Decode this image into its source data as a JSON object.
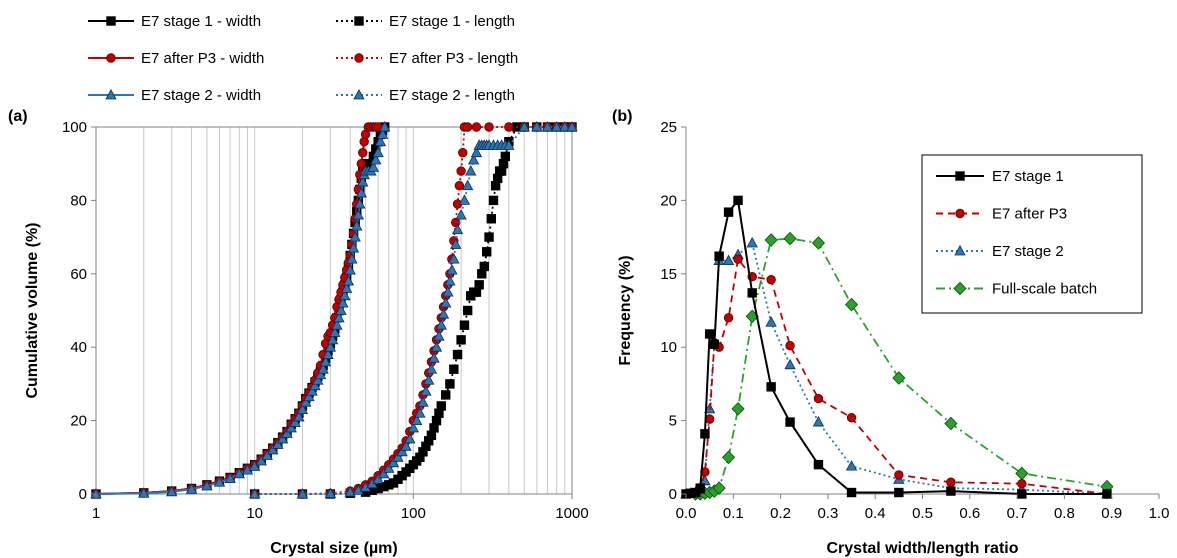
{
  "chart_data": [
    {
      "panel_label": "(a)",
      "type": "line",
      "xlabel": "Crystal size (µm)",
      "ylabel": "Cumulative volume (%)",
      "xscale": "log",
      "xlim": [
        1,
        1000
      ],
      "ylim": [
        0,
        100
      ],
      "xticks": [
        "1",
        "10",
        "100",
        "1000"
      ],
      "yticks": [
        "0",
        "20",
        "40",
        "60",
        "80",
        "100"
      ],
      "grid": "vertical minor gridlines",
      "legend_position": "above plot, two columns",
      "series": [
        {
          "name": "E7 stage 1 - width",
          "color": "#000000",
          "style": "solid",
          "marker": "square",
          "x": [
            1,
            2,
            3,
            4,
            5,
            6,
            7,
            8,
            9,
            10,
            11,
            12,
            13,
            14,
            15,
            16,
            17,
            18,
            19,
            20,
            21,
            22,
            23,
            24,
            25,
            26,
            27,
            28,
            29,
            30,
            31,
            32,
            33,
            34,
            35,
            36,
            37,
            38,
            39,
            40,
            41,
            42,
            43,
            44,
            45,
            46,
            47,
            48,
            49,
            50,
            52,
            54,
            56,
            58,
            60,
            62,
            64,
            66
          ],
          "y": [
            0,
            0.3,
            0.8,
            1.5,
            2.5,
            3.5,
            4.5,
            5.8,
            7,
            8,
            9.5,
            11,
            12.5,
            14,
            15.5,
            17,
            19,
            20.5,
            22,
            24,
            26,
            27.5,
            29,
            30.5,
            32,
            33.5,
            35,
            37,
            39,
            41,
            43,
            45,
            48,
            50,
            53,
            55,
            57,
            59,
            62,
            65,
            68,
            71,
            74,
            77,
            80,
            83,
            86,
            88,
            89,
            90,
            90,
            90,
            92,
            94,
            96,
            98,
            99,
            100
          ]
        },
        {
          "name": "E7 after P3 - width",
          "color": "#c00000",
          "style": "solid",
          "marker": "circle",
          "x": [
            1,
            2,
            3,
            4,
            5,
            6,
            7,
            8,
            9,
            10,
            11,
            12,
            13,
            14,
            15,
            16,
            17,
            18,
            19,
            20,
            21,
            22,
            23,
            24,
            25,
            26,
            27,
            28,
            29,
            30,
            31,
            32,
            33,
            34,
            35,
            36,
            37,
            38,
            39,
            40,
            41,
            42,
            43,
            44,
            45,
            46,
            47,
            48,
            49,
            50,
            52,
            54,
            56,
            58,
            60
          ],
          "y": [
            0,
            0.3,
            0.8,
            1.5,
            2.5,
            3.5,
            4.5,
            5.8,
            7,
            8,
            9.5,
            11,
            12.5,
            14,
            15.5,
            17,
            19,
            20.5,
            22,
            24,
            26,
            27.5,
            29,
            31,
            33,
            35,
            38,
            41,
            43,
            44,
            46,
            48,
            51,
            53,
            55,
            57,
            59,
            61,
            63,
            65,
            68,
            71,
            75,
            79,
            83,
            87,
            90,
            93,
            96,
            98,
            100,
            100,
            100,
            100,
            100
          ]
        },
        {
          "name": "E7 stage 2 - width",
          "color": "#2e75b6",
          "style": "solid",
          "marker": "triangle",
          "x": [
            1,
            2,
            3,
            4,
            5,
            6,
            7,
            8,
            9,
            10,
            11,
            12,
            13,
            14,
            15,
            16,
            17,
            18,
            19,
            20,
            21,
            22,
            23,
            24,
            25,
            26,
            27,
            28,
            29,
            30,
            31,
            32,
            33,
            34,
            35,
            36,
            37,
            38,
            39,
            40,
            41,
            42,
            43,
            44,
            45,
            46,
            47,
            48,
            49,
            50,
            52,
            54,
            56,
            58,
            60,
            62,
            64,
            66
          ],
          "y": [
            0,
            0.2,
            0.6,
            1.3,
            2.2,
            3.2,
            4.2,
            5.5,
            6.5,
            7.5,
            9,
            10.5,
            12,
            13.5,
            15,
            16.5,
            18,
            19.5,
            21,
            23,
            25,
            26.5,
            28,
            29.5,
            31,
            32.5,
            34,
            36,
            38,
            40,
            42,
            44,
            46,
            48,
            50,
            52,
            54,
            56,
            58,
            61,
            64,
            67,
            70,
            73,
            76,
            79,
            82,
            85,
            87,
            88,
            88,
            88,
            89,
            91,
            93,
            96,
            98,
            100
          ]
        },
        {
          "name": "E7 stage 1 - length",
          "color": "#000000",
          "style": "dotted",
          "marker": "square",
          "x": [
            10,
            20,
            30,
            40,
            50,
            55,
            60,
            65,
            70,
            75,
            80,
            85,
            90,
            95,
            100,
            105,
            110,
            115,
            120,
            125,
            130,
            135,
            140,
            145,
            150,
            160,
            170,
            180,
            190,
            200,
            210,
            220,
            230,
            240,
            250,
            260,
            270,
            280,
            290,
            300,
            310,
            320,
            330,
            340,
            350,
            360,
            370,
            380,
            400,
            450,
            500,
            600,
            700,
            800,
            900,
            1000
          ],
          "y": [
            0,
            0,
            0,
            0.2,
            0.5,
            1,
            1.5,
            2,
            2.5,
            3,
            4,
            5,
            6,
            7,
            8,
            9,
            10,
            11.5,
            13,
            14.5,
            16,
            18,
            20,
            22,
            24,
            27,
            30,
            34,
            38,
            42,
            46,
            50,
            54,
            55,
            55,
            57,
            60,
            62,
            66,
            70,
            75,
            80,
            84,
            86,
            88,
            88,
            90,
            92,
            96,
            100,
            100,
            100,
            100,
            100,
            100,
            100
          ]
        },
        {
          "name": "E7 after P3 - length",
          "color": "#c00000",
          "style": "dotted",
          "marker": "circle",
          "x": [
            10,
            20,
            30,
            40,
            45,
            50,
            55,
            60,
            65,
            70,
            75,
            80,
            85,
            90,
            95,
            100,
            105,
            110,
            115,
            120,
            125,
            130,
            135,
            140,
            145,
            150,
            155,
            160,
            165,
            170,
            175,
            180,
            185,
            190,
            195,
            200,
            205,
            210,
            220,
            250,
            300,
            400,
            500,
            600,
            700,
            800,
            900,
            1000
          ],
          "y": [
            0,
            0,
            0.2,
            0.8,
            1.5,
            2.5,
            3.5,
            5,
            6.5,
            8,
            9.5,
            11,
            12.5,
            14.5,
            17,
            20,
            22,
            24,
            27,
            30,
            33,
            36,
            39,
            42,
            45,
            48,
            51,
            54,
            57,
            60,
            64,
            69,
            74,
            79,
            84,
            88,
            93,
            100,
            100,
            100,
            100,
            100,
            100,
            100,
            100,
            100,
            100,
            100
          ]
        },
        {
          "name": "E7 stage 2 - length",
          "color": "#2e75b6",
          "style": "dotted",
          "marker": "triangle",
          "x": [
            10,
            20,
            30,
            40,
            45,
            50,
            55,
            60,
            65,
            70,
            75,
            80,
            85,
            90,
            95,
            100,
            105,
            110,
            115,
            120,
            125,
            130,
            135,
            140,
            145,
            150,
            155,
            160,
            165,
            170,
            175,
            180,
            185,
            190,
            200,
            210,
            220,
            230,
            240,
            250,
            260,
            270,
            280,
            290,
            300,
            320,
            340,
            360,
            380,
            400,
            500,
            600,
            700,
            800,
            900,
            1000
          ],
          "y": [
            0,
            0,
            0.1,
            0.5,
            1,
            1.8,
            2.8,
            4,
            5.5,
            7,
            8.5,
            10,
            11.5,
            13,
            15,
            18,
            20,
            22,
            25,
            28,
            31,
            34,
            37,
            40,
            43,
            46,
            49,
            52,
            55,
            58,
            61,
            64,
            68,
            72,
            76,
            80,
            84,
            88,
            91,
            93,
            95,
            95,
            95,
            95,
            95,
            95,
            95,
            95,
            95,
            95,
            100,
            100,
            100,
            100,
            100,
            100
          ]
        }
      ]
    },
    {
      "panel_label": "(b)",
      "type": "line",
      "xlabel": "Crystal width/length ratio",
      "ylabel": "Frequency (%)",
      "xlim": [
        0,
        1
      ],
      "ylim": [
        0,
        25
      ],
      "xticks": [
        "0.0",
        "0.1",
        "0.2",
        "0.3",
        "0.4",
        "0.5",
        "0.6",
        "0.7",
        "0.8",
        "0.9",
        "1.0"
      ],
      "yticks": [
        "0",
        "5",
        "10",
        "15",
        "20",
        "25"
      ],
      "grid": "none",
      "legend_position": "top-right inside plot",
      "series": [
        {
          "name": "E7 stage 1",
          "color": "#000000",
          "style": "solid",
          "marker": "square",
          "x": [
            0.0,
            0.01,
            0.02,
            0.03,
            0.04,
            0.05,
            0.06,
            0.07,
            0.09,
            0.11,
            0.14,
            0.18,
            0.22,
            0.28,
            0.35,
            0.45,
            0.56,
            0.71,
            0.89
          ],
          "y": [
            0,
            0.05,
            0.1,
            0.4,
            4.1,
            10.9,
            10.2,
            16.2,
            19.2,
            20.0,
            13.7,
            7.3,
            4.9,
            2.0,
            0.1,
            0.1,
            0.2,
            0.0,
            0.0
          ]
        },
        {
          "name": "E7 after P3",
          "color": "#c00000",
          "style": "dashed",
          "marker": "circle",
          "x": [
            0.0,
            0.01,
            0.02,
            0.03,
            0.04,
            0.05,
            0.06,
            0.07,
            0.09,
            0.11,
            0.14,
            0.18,
            0.22,
            0.28,
            0.35,
            0.45,
            0.56,
            0.71,
            0.89
          ],
          "y": [
            0,
            0.05,
            0.1,
            0.3,
            1.5,
            5.1,
            10.3,
            10.0,
            12.0,
            16.0,
            14.8,
            14.6,
            10.1,
            6.5,
            5.2,
            1.3,
            0.8,
            0.7,
            0.0
          ]
        },
        {
          "name": "E7 stage 2",
          "color": "#2e75b6",
          "style": "dotted",
          "marker": "triangle",
          "x": [
            0.0,
            0.01,
            0.02,
            0.03,
            0.04,
            0.05,
            0.06,
            0.07,
            0.09,
            0.11,
            0.14,
            0.18,
            0.22,
            0.28,
            0.35,
            0.45,
            0.56,
            0.71,
            0.89
          ],
          "y": [
            0,
            0.05,
            0.1,
            0.3,
            0.9,
            5.8,
            10.2,
            15.9,
            15.9,
            16.3,
            17.1,
            11.7,
            8.8,
            4.9,
            1.9,
            1.0,
            0.4,
            0.3,
            0.0
          ]
        },
        {
          "name": "Full-scale batch",
          "color": "#2ca02c",
          "style": "dashdot",
          "marker": "diamond",
          "x": [
            0.02,
            0.03,
            0.04,
            0.05,
            0.06,
            0.07,
            0.09,
            0.11,
            0.14,
            0.18,
            0.22,
            0.28,
            0.35,
            0.45,
            0.56,
            0.71,
            0.89
          ],
          "y": [
            0,
            0,
            0.05,
            0.1,
            0.2,
            0.4,
            2.5,
            5.8,
            12.1,
            17.3,
            17.4,
            17.1,
            12.9,
            7.9,
            4.8,
            1.4,
            0.5
          ]
        }
      ]
    }
  ]
}
